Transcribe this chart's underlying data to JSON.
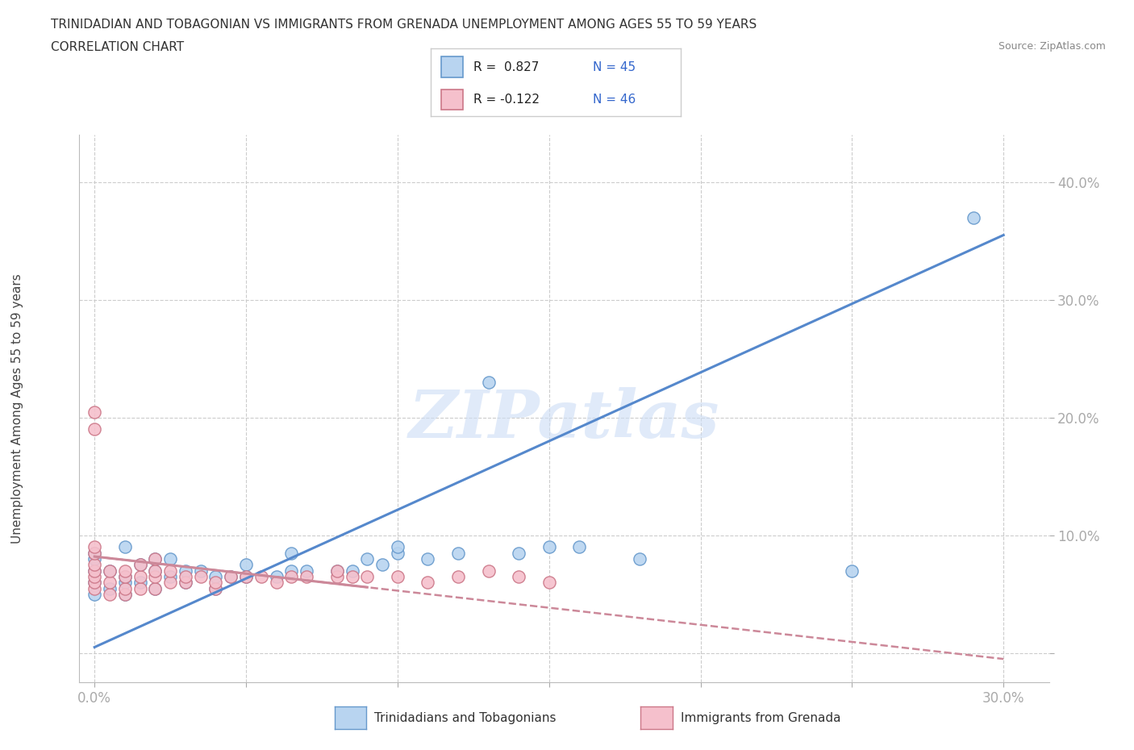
{
  "title_line1": "TRINIDADIAN AND TOBAGONIAN VS IMMIGRANTS FROM GRENADA UNEMPLOYMENT AMONG AGES 55 TO 59 YEARS",
  "title_line2": "CORRELATION CHART",
  "source_text": "Source: ZipAtlas.com",
  "ylabel": "Unemployment Among Ages 55 to 59 years",
  "xlim": [
    -0.005,
    0.315
  ],
  "ylim": [
    -0.025,
    0.44
  ],
  "xticks": [
    0.0,
    0.05,
    0.1,
    0.15,
    0.2,
    0.25,
    0.3
  ],
  "yticks": [
    0.0,
    0.1,
    0.2,
    0.3,
    0.4
  ],
  "xtick_labels": [
    "0.0%",
    "",
    "",
    "",
    "",
    "",
    "30.0%"
  ],
  "ytick_labels": [
    "",
    "10.0%",
    "20.0%",
    "30.0%",
    "40.0%"
  ],
  "watermark": "ZIPatlas",
  "color_blue": "#b8d4f0",
  "color_blue_edge": "#6699cc",
  "color_blue_line": "#5588cc",
  "color_pink": "#f5c0cc",
  "color_pink_edge": "#cc7788",
  "color_pink_line": "#cc8899",
  "background": "#ffffff",
  "grid_color": "#cccccc",
  "blue_scatter_x": [
    0.0,
    0.0,
    0.0,
    0.0,
    0.0,
    0.005,
    0.005,
    0.01,
    0.01,
    0.01,
    0.01,
    0.015,
    0.015,
    0.02,
    0.02,
    0.02,
    0.025,
    0.025,
    0.03,
    0.03,
    0.035,
    0.04,
    0.04,
    0.045,
    0.05,
    0.05,
    0.06,
    0.065,
    0.065,
    0.07,
    0.08,
    0.085,
    0.09,
    0.095,
    0.1,
    0.1,
    0.11,
    0.12,
    0.13,
    0.14,
    0.15,
    0.16,
    0.18,
    0.25,
    0.29
  ],
  "blue_scatter_y": [
    0.05,
    0.06,
    0.07,
    0.08,
    0.085,
    0.055,
    0.07,
    0.05,
    0.06,
    0.065,
    0.09,
    0.06,
    0.075,
    0.055,
    0.07,
    0.08,
    0.065,
    0.08,
    0.06,
    0.07,
    0.07,
    0.055,
    0.065,
    0.065,
    0.065,
    0.075,
    0.065,
    0.07,
    0.085,
    0.07,
    0.07,
    0.07,
    0.08,
    0.075,
    0.085,
    0.09,
    0.08,
    0.085,
    0.23,
    0.085,
    0.09,
    0.09,
    0.08,
    0.07,
    0.37
  ],
  "pink_scatter_x": [
    0.0,
    0.0,
    0.0,
    0.0,
    0.0,
    0.0,
    0.0,
    0.0,
    0.0,
    0.005,
    0.005,
    0.005,
    0.01,
    0.01,
    0.01,
    0.01,
    0.015,
    0.015,
    0.015,
    0.02,
    0.02,
    0.02,
    0.02,
    0.025,
    0.025,
    0.03,
    0.03,
    0.035,
    0.04,
    0.04,
    0.045,
    0.05,
    0.055,
    0.06,
    0.065,
    0.07,
    0.08,
    0.08,
    0.085,
    0.09,
    0.1,
    0.11,
    0.12,
    0.13,
    0.14,
    0.15
  ],
  "pink_scatter_y": [
    0.055,
    0.06,
    0.065,
    0.07,
    0.075,
    0.085,
    0.09,
    0.19,
    0.205,
    0.05,
    0.06,
    0.07,
    0.05,
    0.055,
    0.065,
    0.07,
    0.055,
    0.065,
    0.075,
    0.055,
    0.065,
    0.07,
    0.08,
    0.06,
    0.07,
    0.06,
    0.065,
    0.065,
    0.055,
    0.06,
    0.065,
    0.065,
    0.065,
    0.06,
    0.065,
    0.065,
    0.065,
    0.07,
    0.065,
    0.065,
    0.065,
    0.06,
    0.065,
    0.07,
    0.065,
    0.06
  ],
  "blue_line_x": [
    0.0,
    0.3
  ],
  "blue_line_y": [
    0.005,
    0.355
  ],
  "pink_line_x": [
    0.0,
    0.3
  ],
  "pink_line_y": [
    0.082,
    -0.005
  ]
}
